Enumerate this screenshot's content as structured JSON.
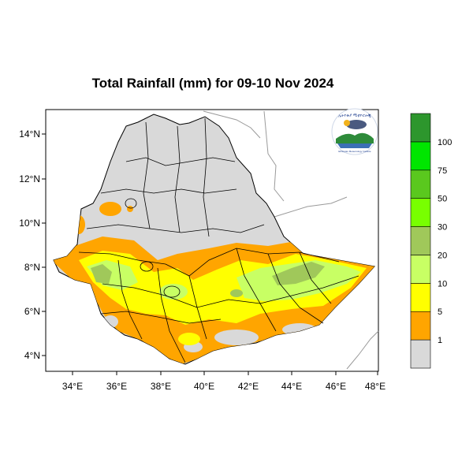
{
  "title": "Total Rainfall (mm) for 09-10 Nov 2024",
  "map": {
    "x_ticks": [
      "34°E",
      "36°E",
      "38°E",
      "40°E",
      "42°E",
      "44°E",
      "46°E",
      "48°E"
    ],
    "y_ticks": [
      "14°N",
      "12°N",
      "10°N",
      "8°N",
      "6°N",
      "4°N"
    ],
    "lon_range": [
      32.9,
      48.3
    ],
    "lat_range": [
      3.2,
      15.0
    ]
  },
  "legend": {
    "colors": [
      "#d9d9d9",
      "#ffa500",
      "#ffff00",
      "#c8ff64",
      "#a0c85a",
      "#78ff00",
      "#5ac81e",
      "#00e600",
      "#2d962d"
    ],
    "labels": [
      "1",
      "5",
      "10",
      "20",
      "30",
      "50",
      "75",
      "100"
    ]
  },
  "logo": {
    "caption": "Ethiopian Meteorology Institute"
  }
}
